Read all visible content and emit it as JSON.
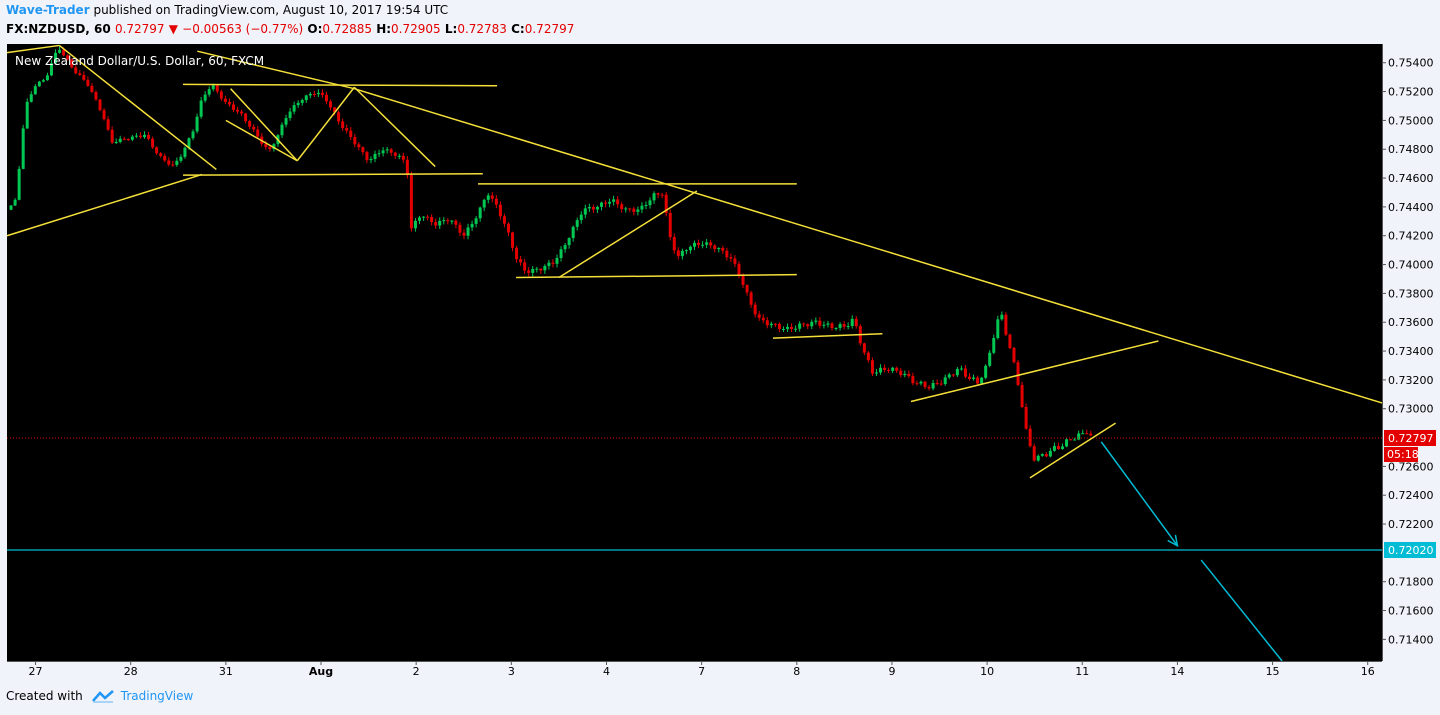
{
  "header": {
    "author": "Wave-Trader",
    "published": "published on TradingView.com, August 10, 2017 19:54 UTC"
  },
  "ohlc": {
    "symbol": "FX:NZDUSD, 60",
    "last": "0.72797",
    "change": "−0.00563 (−0.77%)",
    "o_label": "O:",
    "o": "0.72885",
    "h_label": "H:",
    "h": "0.72905",
    "l_label": "L:",
    "l": "0.72783",
    "c_label": "C:",
    "c": "0.72797"
  },
  "footer": {
    "created_with": "Created with",
    "brand": "TradingView"
  },
  "chart_data": {
    "type": "candlestick",
    "title": "New Zealand Dollar/U.S. Dollar, 60, FXCM",
    "y_ticks": [
      0.754,
      0.752,
      0.75,
      0.748,
      0.746,
      0.744,
      0.742,
      0.74,
      0.738,
      0.736,
      0.734,
      0.732,
      0.73,
      0.726,
      0.724,
      0.722,
      0.718,
      0.716,
      0.714
    ],
    "y_tick_labels": [
      "0.75400",
      "0.75200",
      "0.75000",
      "0.74800",
      "0.74600",
      "0.74400",
      "0.74200",
      "0.74000",
      "0.73800",
      "0.73600",
      "0.73400",
      "0.73200",
      "0.73000",
      "0.72600",
      "0.72400",
      "0.72200",
      "0.71800",
      "0.71600",
      "0.71400"
    ],
    "ylim": [
      0.7125,
      0.7553
    ],
    "x_ticks": [
      {
        "label": "27",
        "x": 0.3
      },
      {
        "label": "28",
        "x": 1.3
      },
      {
        "label": "31",
        "x": 2.3
      },
      {
        "label": "Aug",
        "x": 3.3
      },
      {
        "label": "2",
        "x": 4.3
      },
      {
        "label": "3",
        "x": 5.3
      },
      {
        "label": "4",
        "x": 6.3
      },
      {
        "label": "7",
        "x": 7.3
      },
      {
        "label": "8",
        "x": 8.3
      },
      {
        "label": "9",
        "x": 9.3
      },
      {
        "label": "10",
        "x": 10.3
      },
      {
        "label": "11",
        "x": 11.3
      },
      {
        "label": "14",
        "x": 12.3
      },
      {
        "label": "15",
        "x": 13.3
      },
      {
        "label": "16",
        "x": 14.3
      }
    ],
    "xlim": [
      0,
      14.45
    ],
    "price_path": [
      [
        0.0,
        0.7438
      ],
      [
        0.1,
        0.7445
      ],
      [
        0.15,
        0.7485
      ],
      [
        0.2,
        0.751
      ],
      [
        0.3,
        0.7525
      ],
      [
        0.4,
        0.7528
      ],
      [
        0.5,
        0.7545
      ],
      [
        0.55,
        0.755
      ],
      [
        0.7,
        0.7535
      ],
      [
        0.85,
        0.7525
      ],
      [
        1.0,
        0.7505
      ],
      [
        1.1,
        0.7485
      ],
      [
        1.3,
        0.7488
      ],
      [
        1.45,
        0.749
      ],
      [
        1.6,
        0.7475
      ],
      [
        1.75,
        0.7468
      ],
      [
        1.85,
        0.7478
      ],
      [
        1.95,
        0.7492
      ],
      [
        2.05,
        0.7515
      ],
      [
        2.15,
        0.7525
      ],
      [
        2.3,
        0.7512
      ],
      [
        2.45,
        0.7505
      ],
      [
        2.6,
        0.7492
      ],
      [
        2.75,
        0.7478
      ],
      [
        2.85,
        0.749
      ],
      [
        2.95,
        0.7505
      ],
      [
        3.1,
        0.7515
      ],
      [
        3.25,
        0.752
      ],
      [
        3.35,
        0.7515
      ],
      [
        3.5,
        0.7498
      ],
      [
        3.65,
        0.7485
      ],
      [
        3.8,
        0.7472
      ],
      [
        3.95,
        0.748
      ],
      [
        4.1,
        0.7476
      ],
      [
        4.2,
        0.747
      ],
      [
        4.25,
        0.7425
      ],
      [
        4.35,
        0.7435
      ],
      [
        4.5,
        0.7428
      ],
      [
        4.65,
        0.7432
      ],
      [
        4.8,
        0.742
      ],
      [
        4.95,
        0.7435
      ],
      [
        5.05,
        0.745
      ],
      [
        5.15,
        0.744
      ],
      [
        5.25,
        0.7425
      ],
      [
        5.35,
        0.7405
      ],
      [
        5.45,
        0.7395
      ],
      [
        5.6,
        0.7397
      ],
      [
        5.75,
        0.7402
      ],
      [
        5.85,
        0.7412
      ],
      [
        5.95,
        0.7425
      ],
      [
        6.05,
        0.7438
      ],
      [
        6.2,
        0.744
      ],
      [
        6.35,
        0.7445
      ],
      [
        6.5,
        0.7438
      ],
      [
        6.65,
        0.7438
      ],
      [
        6.8,
        0.7448
      ],
      [
        6.9,
        0.745
      ],
      [
        6.95,
        0.7422
      ],
      [
        7.05,
        0.7405
      ],
      [
        7.15,
        0.7412
      ],
      [
        7.3,
        0.7415
      ],
      [
        7.45,
        0.7412
      ],
      [
        7.6,
        0.7405
      ],
      [
        7.7,
        0.7393
      ],
      [
        7.8,
        0.7375
      ],
      [
        7.9,
        0.7362
      ],
      [
        8.05,
        0.7358
      ],
      [
        8.2,
        0.7355
      ],
      [
        8.35,
        0.7358
      ],
      [
        8.5,
        0.736
      ],
      [
        8.65,
        0.7357
      ],
      [
        8.8,
        0.7357
      ],
      [
        8.9,
        0.7362
      ],
      [
        9.0,
        0.734
      ],
      [
        9.1,
        0.7325
      ],
      [
        9.25,
        0.7328
      ],
      [
        9.4,
        0.7325
      ],
      [
        9.55,
        0.7318
      ],
      [
        9.7,
        0.7315
      ],
      [
        9.85,
        0.732
      ],
      [
        10.0,
        0.7328
      ],
      [
        10.1,
        0.7322
      ],
      [
        10.2,
        0.7318
      ],
      [
        10.3,
        0.733
      ],
      [
        10.4,
        0.736
      ],
      [
        10.45,
        0.7365
      ],
      [
        10.55,
        0.734
      ],
      [
        10.65,
        0.731
      ],
      [
        10.72,
        0.728
      ],
      [
        10.8,
        0.7265
      ],
      [
        10.9,
        0.7268
      ],
      [
        11.0,
        0.7272
      ],
      [
        11.1,
        0.7275
      ],
      [
        11.2,
        0.728
      ],
      [
        11.3,
        0.7282
      ],
      [
        11.35,
        0.7285
      ],
      [
        11.4,
        0.72797
      ]
    ],
    "trendlines": [
      {
        "x1": 0.0,
        "y1": 0.742,
        "x2": 2.05,
        "y2": 0.74625
      },
      {
        "x1": 0.55,
        "y1": 0.7552,
        "x2": 2.2,
        "y2": 0.7466
      },
      {
        "x1": 0.0,
        "y1": 0.7547,
        "x2": 0.55,
        "y2": 0.7552
      },
      {
        "x1": 1.85,
        "y1": 0.7462,
        "x2": 5.0,
        "y2": 0.7463
      },
      {
        "x1": 1.85,
        "y1": 0.7525,
        "x2": 5.15,
        "y2": 0.7524
      },
      {
        "x1": 2.3,
        "y1": 0.75,
        "x2": 3.05,
        "y2": 0.7472
      },
      {
        "x1": 2.35,
        "y1": 0.7522,
        "x2": 3.05,
        "y2": 0.7472
      },
      {
        "x1": 3.05,
        "y1": 0.7472,
        "x2": 3.65,
        "y2": 0.7523
      },
      {
        "x1": 3.65,
        "y1": 0.7523,
        "x2": 4.5,
        "y2": 0.7468
      },
      {
        "x1": 2.0,
        "y1": 0.7548,
        "x2": 3.65,
        "y2": 0.7522
      },
      {
        "x1": 3.65,
        "y1": 0.7522,
        "x2": 14.45,
        "y2": 0.7304
      },
      {
        "x1": 4.95,
        "y1": 0.7456,
        "x2": 8.3,
        "y2": 0.7456
      },
      {
        "x1": 5.35,
        "y1": 0.7391,
        "x2": 8.3,
        "y2": 0.7393
      },
      {
        "x1": 5.8,
        "y1": 0.7391,
        "x2": 7.25,
        "y2": 0.7451
      },
      {
        "x1": 8.05,
        "y1": 0.7349,
        "x2": 9.2,
        "y2": 0.7352
      },
      {
        "x1": 9.5,
        "y1": 0.7305,
        "x2": 12.1,
        "y2": 0.7347
      },
      {
        "x1": 10.75,
        "y1": 0.7252,
        "x2": 11.65,
        "y2": 0.729
      }
    ],
    "arrows": [
      {
        "x1": 11.5,
        "y1": 0.7277,
        "x2": 12.3,
        "y2": 0.7205
      },
      {
        "x1": 12.55,
        "y1": 0.7195,
        "x2": 13.4,
        "y2": 0.7125
      }
    ],
    "current_price": {
      "value": 0.72797,
      "label": "0.72797",
      "countdown": "05:18",
      "color": "#e40000"
    },
    "target_level": {
      "value": 0.7202,
      "label": "0.72020",
      "color": "#00bcd4"
    },
    "colors": {
      "background": "#000000",
      "up": "#00c853",
      "down": "#e40000",
      "trendline": "#f5e03a",
      "target": "#00bcd4",
      "axis_text": "#000000"
    }
  }
}
